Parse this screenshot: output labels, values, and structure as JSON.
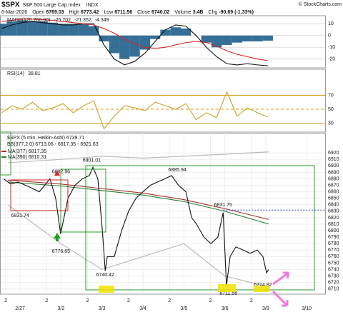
{
  "header": {
    "symbol": "$SPX",
    "name": "S&P 500 Large Cap Index",
    "exchange": "INDX",
    "credit": "© StockCharts.com",
    "date": "6-Mar-2026",
    "quote": [
      {
        "label": "Open",
        "value": "6769.03"
      },
      {
        "label": "High",
        "value": "6773.42"
      },
      {
        "label": "Low",
        "value": "6711.56"
      },
      {
        "label": "Close",
        "value": "6740.02"
      },
      {
        "label": "Volume",
        "value": "3.4B"
      },
      {
        "label": "Chg",
        "value": "-90.69 (-1.33%)"
      }
    ]
  },
  "chart_data": [
    {
      "type": "line",
      "title": "MACD(120,260,90)",
      "xlim": [
        -0.49,
        7.45
      ],
      "ylim": [
        -27.5,
        16.9
      ],
      "yticks": [
        10,
        0,
        -10,
        -20
      ],
      "grid_color": "#dddddd",
      "x": [
        -0.45,
        -0.2,
        0.05,
        0.3,
        0.55,
        0.8,
        1.05,
        1.3,
        1.55,
        1.8,
        2.05,
        2.3,
        2.55,
        2.8,
        3.05,
        3.3,
        3.55,
        3.8,
        4.05,
        4.3,
        4.55,
        4.8,
        5.05,
        5.3,
        5.55,
        5.8,
        6.05
      ],
      "series": [
        {
          "name": "-4.349",
          "type": "bar",
          "color": "#1f5f8b",
          "values": [
            10,
            12,
            13,
            12,
            12,
            11,
            10,
            10,
            10,
            8,
            -5,
            -15,
            -20,
            -18,
            -12,
            -3,
            5,
            7,
            6,
            0,
            -6,
            -10,
            -8,
            -6,
            -5,
            -5,
            -4.349
          ]
        },
        {
          "name": "-25.702,",
          "type": "line",
          "color": "#111111",
          "values": [
            6,
            9,
            11,
            12,
            11,
            10,
            9,
            9,
            10,
            10,
            -8,
            -20,
            -25,
            -22,
            -15,
            -5,
            5,
            9,
            8,
            0,
            -10,
            -18,
            -24,
            -25,
            -24,
            -25,
            -25.702
          ]
        },
        {
          "name": "-21.352,",
          "type": "line",
          "color": "#d62728",
          "values": [
            12,
            13,
            14,
            14,
            13.5,
            13,
            12,
            11,
            10,
            9,
            6,
            2,
            -3,
            -7,
            -10,
            -11,
            -10,
            -8,
            -6,
            -5,
            -6,
            -9,
            -13,
            -16,
            -18,
            -20,
            -21.352
          ]
        }
      ]
    },
    {
      "type": "line",
      "title": "RSI(14)",
      "xlim": [
        -0.49,
        7.45
      ],
      "ylim": [
        17.2,
        107.4
      ],
      "yticks": [
        70,
        50,
        30
      ],
      "grid_color": "#d4a017",
      "x": [
        -0.45,
        -0.2,
        0.05,
        0.3,
        0.55,
        0.8,
        1.05,
        1.3,
        1.55,
        1.8,
        2.05,
        2.3,
        2.55,
        2.8,
        3.05,
        3.3,
        3.55,
        3.8,
        4.05,
        4.3,
        4.55,
        4.8,
        5.05,
        5.3,
        5.55,
        5.8,
        6.05
      ],
      "series": [
        {
          "name": "38.81",
          "type": "line",
          "color": "#c9a227",
          "values": [
            45,
            55,
            50,
            60,
            48,
            52,
            58,
            45,
            55,
            62,
            22,
            40,
            55,
            52,
            48,
            60,
            55,
            50,
            58,
            35,
            45,
            38,
            75,
            40,
            52,
            45,
            38.81
          ]
        }
      ]
    },
    {
      "type": "line",
      "title": "$SPX (5 min, Heikin-Ashi) 6739.71",
      "xlim": [
        -0.49,
        7.45
      ],
      "ylim": [
        6702,
        6950
      ],
      "yticks": [
        6710,
        6720,
        6730,
        6740,
        6750,
        6760,
        6770,
        6780,
        6790,
        6800,
        6810,
        6820,
        6830,
        6840,
        6850,
        6860,
        6870,
        6880,
        6890,
        6900,
        6910,
        6920
      ],
      "grid_color": "#eeeeee",
      "xticks": [
        {
          "value": -0.35,
          "label": "2"
        },
        {
          "value": 0,
          "label": "2/27"
        },
        {
          "value": 0.65,
          "label": "2"
        },
        {
          "value": 1,
          "label": "3/2"
        },
        {
          "value": 1.65,
          "label": "2"
        },
        {
          "value": 2,
          "label": "3/3"
        },
        {
          "value": 2.65,
          "label": "2"
        },
        {
          "value": 3,
          "label": "3/4"
        },
        {
          "value": 3.65,
          "label": "2"
        },
        {
          "value": 4,
          "label": "3/5"
        },
        {
          "value": 4.65,
          "label": "2"
        },
        {
          "value": 5,
          "label": "3/6"
        },
        {
          "value": 5.65,
          "label": "2"
        },
        {
          "value": 6,
          "label": "3/9"
        },
        {
          "value": 7,
          "label": "3/10"
        }
      ],
      "band": {
        "name": "BB(377,2.0) 6713.06 - 6817.35 - 6921.63",
        "color": "#bbbbbb",
        "x": [
          -0.3,
          1,
          2,
          3,
          4,
          5,
          6.07
        ],
        "upper": [
          6905,
          6910,
          6915,
          6912,
          6915,
          6918,
          6921.63
        ],
        "lower": [
          6840,
          6780,
          6740,
          6760,
          6780,
          6730,
          6713.06
        ]
      },
      "series": [
        {
          "name": "MA(377) 6817.35",
          "type": "line",
          "color": "#a0302a",
          "x": [
            -0.3,
            1,
            2,
            3,
            4,
            5,
            6.07
          ],
          "values": [
            6878,
            6872,
            6865,
            6858,
            6848,
            6834,
            6817.35
          ]
        },
        {
          "name": "MA(390) 6810.31",
          "type": "line",
          "color": "#2e7d32",
          "x": [
            -0.3,
            1,
            2,
            3,
            4,
            5,
            6.07
          ],
          "values": [
            6875,
            6869,
            6862,
            6855,
            6845,
            6830,
            6810.31
          ]
        },
        {
          "type": "line",
          "color": "#111111",
          "x": [
            -0.4,
            -0.23,
            -0.05,
            0.21,
            0.47,
            0.73,
            0.87,
            0.99,
            1.17,
            1.34,
            1.52,
            1.69,
            1.78,
            1.9,
            2.01,
            2.08,
            2.13,
            2.3,
            2.48,
            2.65,
            2.83,
            3.0,
            3.18,
            3.35,
            3.53,
            3.7,
            3.87,
            4.05,
            4.19,
            4.31,
            4.49,
            4.66,
            4.83,
            4.96,
            5.04,
            5.13,
            5.27,
            5.45,
            5.62,
            5.79,
            5.93,
            6.02,
            6.07
          ],
          "values": [
            6880,
            6872,
            6875,
            6868,
            6860,
            6880,
            6850,
            6795,
            6850,
            6870,
            6880,
            6885,
            6898,
            6880,
            6800,
            6738,
            6760,
            6760,
            6800,
            6830,
            6850,
            6860,
            6870,
            6875,
            6880,
            6885,
            6870,
            6860,
            6820,
            6810,
            6790,
            6780,
            6790,
            6828,
            6715,
            6760,
            6775,
            6770,
            6765,
            6770,
            6760,
            6735,
            6740
          ]
        }
      ],
      "annotations": [
        {
          "x": 0.0,
          "y": 6831.74,
          "pos": "below"
        },
        {
          "x": 1.0,
          "y": 6882.96,
          "pos": "above"
        },
        {
          "x": 1.75,
          "y": 6901.01,
          "pos": "above"
        },
        {
          "x": 1.0,
          "y": 6776.85,
          "pos": "below"
        },
        {
          "x": 2.08,
          "y": 6740.42,
          "pos": "below"
        },
        {
          "x": 3.84,
          "y": 6885.94,
          "pos": "above"
        },
        {
          "x": 4.96,
          "y": 6831.75,
          "pos": "above",
          "extend": "right",
          "color": "#3344cc"
        },
        {
          "x": 5.09,
          "y": 6711.56,
          "pos": "below"
        },
        {
          "x": 5.93,
          "y": 6724.82,
          "pos": "below"
        }
      ]
    }
  ]
}
